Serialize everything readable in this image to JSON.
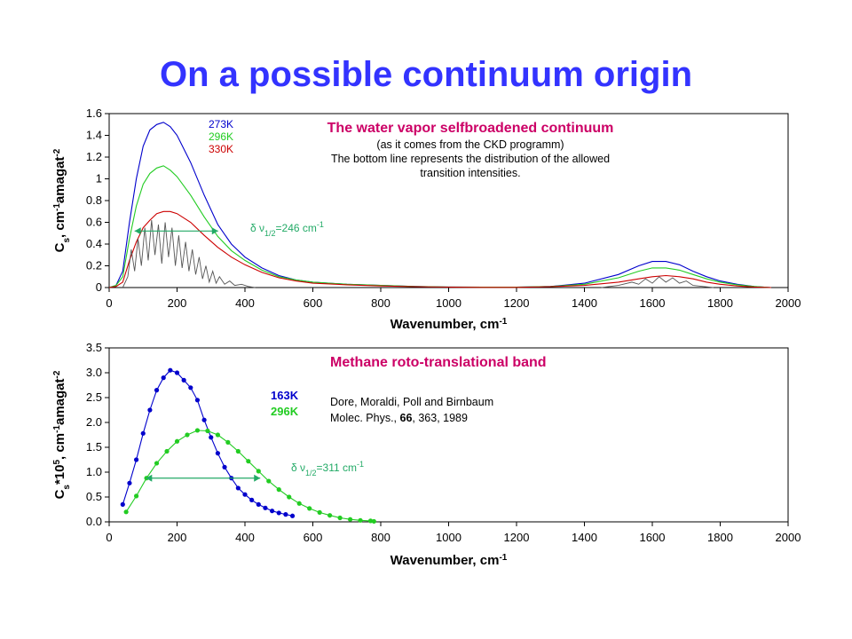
{
  "slide": {
    "title": "On a possible continuum origin"
  },
  "colors": {
    "title": "#3333ff",
    "annotation_title": "#cc0066",
    "blue": "#0000cc",
    "green": "#22cc22",
    "red": "#cc0000",
    "gray": "#555555",
    "arrow": "#22aa66"
  },
  "chart_data": [
    {
      "type": "line",
      "annotation_title": "The water vapor selfbroadened  continuum",
      "annotation_lines": [
        "(as it comes from the CKD programm)",
        "The bottom line represents the distribution of the allowed",
        "transition intensities."
      ],
      "xlabel": "Wavenumber, cm",
      "xlabel_exp": "-1",
      "ylabel_parts": [
        "C",
        "s",
        ", cm",
        "-1",
        "amagat",
        "-2"
      ],
      "xlim": [
        0,
        2000
      ],
      "ylim": [
        0,
        1.6
      ],
      "x_ticks": [
        0,
        200,
        400,
        600,
        800,
        1000,
        1200,
        1400,
        1600,
        1800,
        2000
      ],
      "y_ticks": [
        "0",
        "0.2",
        "0.4",
        "0.6",
        "0.8",
        "1",
        "1.2",
        "1.4",
        "1.6"
      ],
      "legend": [
        "273K",
        "296K",
        "330K"
      ],
      "width_label": {
        "prefix": "δ ν",
        "sub": "1/2",
        "value": "=246 cm",
        "exp": "-1",
        "x1": 75,
        "x2": 321,
        "y": 0.52
      },
      "series": [
        {
          "name": "273K",
          "color": "blue",
          "points": [
            [
              0,
              0
            ],
            [
              20,
              0.02
            ],
            [
              40,
              0.15
            ],
            [
              60,
              0.6
            ],
            [
              80,
              1.0
            ],
            [
              100,
              1.3
            ],
            [
              120,
              1.45
            ],
            [
              140,
              1.5
            ],
            [
              160,
              1.52
            ],
            [
              180,
              1.48
            ],
            [
              200,
              1.4
            ],
            [
              240,
              1.15
            ],
            [
              280,
              0.85
            ],
            [
              320,
              0.58
            ],
            [
              360,
              0.4
            ],
            [
              400,
              0.28
            ],
            [
              450,
              0.18
            ],
            [
              500,
              0.11
            ],
            [
              550,
              0.07
            ],
            [
              600,
              0.05
            ],
            [
              700,
              0.03
            ],
            [
              800,
              0.02
            ],
            [
              900,
              0.01
            ],
            [
              1000,
              0.005
            ],
            [
              1100,
              0.003
            ],
            [
              1200,
              0.003
            ],
            [
              1300,
              0.01
            ],
            [
              1400,
              0.04
            ],
            [
              1500,
              0.12
            ],
            [
              1560,
              0.2
            ],
            [
              1600,
              0.24
            ],
            [
              1640,
              0.24
            ],
            [
              1680,
              0.21
            ],
            [
              1720,
              0.15
            ],
            [
              1760,
              0.1
            ],
            [
              1800,
              0.06
            ],
            [
              1850,
              0.03
            ],
            [
              1900,
              0.01
            ],
            [
              1950,
              0
            ]
          ]
        },
        {
          "name": "296K",
          "color": "green",
          "points": [
            [
              0,
              0
            ],
            [
              20,
              0.02
            ],
            [
              40,
              0.1
            ],
            [
              60,
              0.45
            ],
            [
              80,
              0.75
            ],
            [
              100,
              0.95
            ],
            [
              120,
              1.05
            ],
            [
              140,
              1.1
            ],
            [
              160,
              1.12
            ],
            [
              180,
              1.08
            ],
            [
              200,
              1.02
            ],
            [
              240,
              0.85
            ],
            [
              280,
              0.65
            ],
            [
              320,
              0.47
            ],
            [
              360,
              0.34
            ],
            [
              400,
              0.25
            ],
            [
              450,
              0.16
            ],
            [
              500,
              0.1
            ],
            [
              550,
              0.07
            ],
            [
              600,
              0.05
            ],
            [
              700,
              0.03
            ],
            [
              800,
              0.02
            ],
            [
              900,
              0.01
            ],
            [
              1000,
              0.005
            ],
            [
              1100,
              0.003
            ],
            [
              1200,
              0.003
            ],
            [
              1300,
              0.01
            ],
            [
              1400,
              0.03
            ],
            [
              1500,
              0.09
            ],
            [
              1560,
              0.15
            ],
            [
              1600,
              0.18
            ],
            [
              1640,
              0.18
            ],
            [
              1680,
              0.16
            ],
            [
              1720,
              0.12
            ],
            [
              1760,
              0.08
            ],
            [
              1800,
              0.05
            ],
            [
              1850,
              0.025
            ],
            [
              1900,
              0.01
            ],
            [
              1950,
              0
            ]
          ]
        },
        {
          "name": "330K",
          "color": "red",
          "points": [
            [
              0,
              0
            ],
            [
              20,
              0.01
            ],
            [
              40,
              0.05
            ],
            [
              60,
              0.25
            ],
            [
              80,
              0.42
            ],
            [
              100,
              0.55
            ],
            [
              120,
              0.62
            ],
            [
              140,
              0.68
            ],
            [
              160,
              0.7
            ],
            [
              180,
              0.7
            ],
            [
              200,
              0.68
            ],
            [
              240,
              0.6
            ],
            [
              280,
              0.48
            ],
            [
              320,
              0.37
            ],
            [
              360,
              0.28
            ],
            [
              400,
              0.21
            ],
            [
              450,
              0.14
            ],
            [
              500,
              0.09
            ],
            [
              550,
              0.06
            ],
            [
              600,
              0.04
            ],
            [
              700,
              0.025
            ],
            [
              800,
              0.015
            ],
            [
              900,
              0.008
            ],
            [
              1000,
              0.004
            ],
            [
              1100,
              0.002
            ],
            [
              1200,
              0.002
            ],
            [
              1300,
              0.008
            ],
            [
              1400,
              0.02
            ],
            [
              1500,
              0.05
            ],
            [
              1560,
              0.08
            ],
            [
              1600,
              0.1
            ],
            [
              1640,
              0.11
            ],
            [
              1680,
              0.1
            ],
            [
              1720,
              0.08
            ],
            [
              1760,
              0.05
            ],
            [
              1800,
              0.03
            ],
            [
              1850,
              0.015
            ],
            [
              1900,
              0.005
            ],
            [
              1950,
              0
            ]
          ]
        },
        {
          "name": "",
          "color": "gray",
          "points": [
            [
              40,
              0
            ],
            [
              55,
              0.1
            ],
            [
              65,
              0.35
            ],
            [
              75,
              0.15
            ],
            [
              85,
              0.45
            ],
            [
              95,
              0.2
            ],
            [
              105,
              0.55
            ],
            [
              115,
              0.25
            ],
            [
              125,
              0.62
            ],
            [
              135,
              0.3
            ],
            [
              145,
              0.58
            ],
            [
              155,
              0.22
            ],
            [
              165,
              0.6
            ],
            [
              175,
              0.28
            ],
            [
              185,
              0.55
            ],
            [
              195,
              0.2
            ],
            [
              205,
              0.48
            ],
            [
              215,
              0.18
            ],
            [
              225,
              0.42
            ],
            [
              235,
              0.15
            ],
            [
              245,
              0.35
            ],
            [
              255,
              0.12
            ],
            [
              265,
              0.28
            ],
            [
              275,
              0.08
            ],
            [
              285,
              0.2
            ],
            [
              295,
              0.05
            ],
            [
              305,
              0.15
            ],
            [
              315,
              0.04
            ],
            [
              325,
              0.1
            ],
            [
              340,
              0.03
            ],
            [
              355,
              0.06
            ],
            [
              370,
              0.02
            ],
            [
              390,
              0.03
            ],
            [
              410,
              0.01
            ],
            [
              430,
              0
            ]
          ]
        },
        {
          "name": "",
          "color": "gray",
          "points": [
            [
              1450,
              0
            ],
            [
              1500,
              0.02
            ],
            [
              1540,
              0.05
            ],
            [
              1560,
              0.03
            ],
            [
              1580,
              0.08
            ],
            [
              1600,
              0.04
            ],
            [
              1620,
              0.1
            ],
            [
              1640,
              0.05
            ],
            [
              1660,
              0.09
            ],
            [
              1680,
              0.04
            ],
            [
              1700,
              0.06
            ],
            [
              1720,
              0.02
            ],
            [
              1750,
              0.01
            ],
            [
              1780,
              0
            ]
          ]
        }
      ]
    },
    {
      "type": "scatter",
      "annotation_title": "Methane roto-translational band",
      "annotation_lines": [
        "Dore, Moraldi, Poll  and Birnbaum"
      ],
      "citation": {
        "prefix": "Molec. Phys., ",
        "bold": "66",
        "suffix": ", 363, 1989"
      },
      "xlabel": "Wavenumber, cm",
      "xlabel_exp": "-1",
      "ylabel_parts": [
        "C",
        "s",
        "*10",
        "5",
        ", cm",
        "-1",
        "amagat",
        "-2"
      ],
      "xlim": [
        0,
        2000
      ],
      "ylim": [
        0,
        3.5
      ],
      "x_ticks": [
        0,
        200,
        400,
        600,
        800,
        1000,
        1200,
        1400,
        1600,
        1800,
        2000
      ],
      "y_ticks": [
        "0.0",
        "0.5",
        "1.0",
        "1.5",
        "2.0",
        "2.5",
        "3.0",
        "3.5"
      ],
      "legend": [
        "163K",
        "296K"
      ],
      "width_label": {
        "prefix": "δ ν",
        "sub": "1/2",
        "value": "=311 cm",
        "exp": "-1",
        "x1": 108,
        "x2": 445,
        "y": 0.88
      },
      "series": [
        {
          "name": "163K",
          "color": "blue",
          "points": [
            [
              40,
              0.35
            ],
            [
              60,
              0.78
            ],
            [
              80,
              1.25
            ],
            [
              100,
              1.78
            ],
            [
              120,
              2.25
            ],
            [
              140,
              2.65
            ],
            [
              160,
              2.9
            ],
            [
              180,
              3.05
            ],
            [
              200,
              3.0
            ],
            [
              220,
              2.85
            ],
            [
              240,
              2.7
            ],
            [
              260,
              2.45
            ],
            [
              280,
              2.05
            ],
            [
              300,
              1.7
            ],
            [
              320,
              1.38
            ],
            [
              340,
              1.1
            ],
            [
              360,
              0.88
            ],
            [
              380,
              0.68
            ],
            [
              400,
              0.55
            ],
            [
              420,
              0.44
            ],
            [
              440,
              0.35
            ],
            [
              460,
              0.28
            ],
            [
              480,
              0.22
            ],
            [
              500,
              0.18
            ],
            [
              520,
              0.15
            ],
            [
              540,
              0.12
            ]
          ]
        },
        {
          "name": "296K",
          "color": "green",
          "points": [
            [
              50,
              0.2
            ],
            [
              80,
              0.52
            ],
            [
              110,
              0.88
            ],
            [
              140,
              1.18
            ],
            [
              170,
              1.42
            ],
            [
              200,
              1.62
            ],
            [
              230,
              1.75
            ],
            [
              260,
              1.84
            ],
            [
              290,
              1.83
            ],
            [
              320,
              1.75
            ],
            [
              350,
              1.6
            ],
            [
              380,
              1.42
            ],
            [
              410,
              1.22
            ],
            [
              440,
              1.02
            ],
            [
              470,
              0.82
            ],
            [
              500,
              0.65
            ],
            [
              530,
              0.5
            ],
            [
              560,
              0.37
            ],
            [
              590,
              0.27
            ],
            [
              620,
              0.19
            ],
            [
              650,
              0.13
            ],
            [
              680,
              0.08
            ],
            [
              710,
              0.05
            ],
            [
              740,
              0.03
            ],
            [
              770,
              0.02
            ],
            [
              780,
              0.01
            ]
          ]
        }
      ]
    }
  ]
}
